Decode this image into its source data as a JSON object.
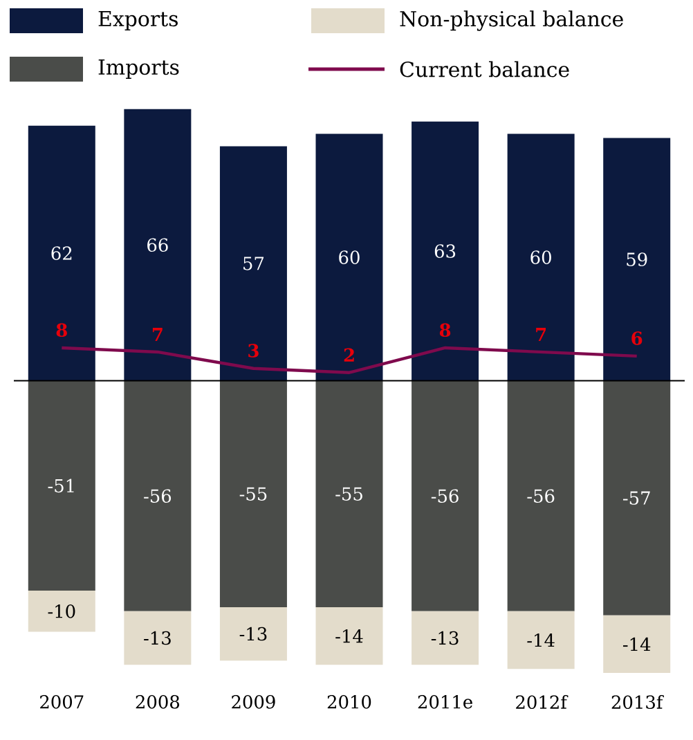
{
  "chart_data": {
    "type": "bar",
    "stacked": true,
    "data_labels": true,
    "legend": "top",
    "categories": [
      "2007",
      "2008",
      "2009",
      "2010",
      "2011e",
      "2012f",
      "2013f"
    ],
    "series": [
      {
        "name": "Exports",
        "color": "#0c1a3e",
        "values": [
          62,
          66,
          57,
          60,
          63,
          60,
          59
        ]
      },
      {
        "name": "Imports",
        "color": "#4a4c49",
        "values": [
          -51,
          -56,
          -55,
          -55,
          -56,
          -56,
          -57
        ]
      },
      {
        "name": "Non-physical balance",
        "color": "#e3dccb",
        "values": [
          -10,
          -13,
          -13,
          -14,
          -13,
          -14,
          -14
        ]
      },
      {
        "name": "Current balance",
        "type": "line",
        "color": "#7f0a4d",
        "values": [
          8,
          7,
          3,
          2,
          8,
          7,
          6
        ]
      }
    ]
  }
}
